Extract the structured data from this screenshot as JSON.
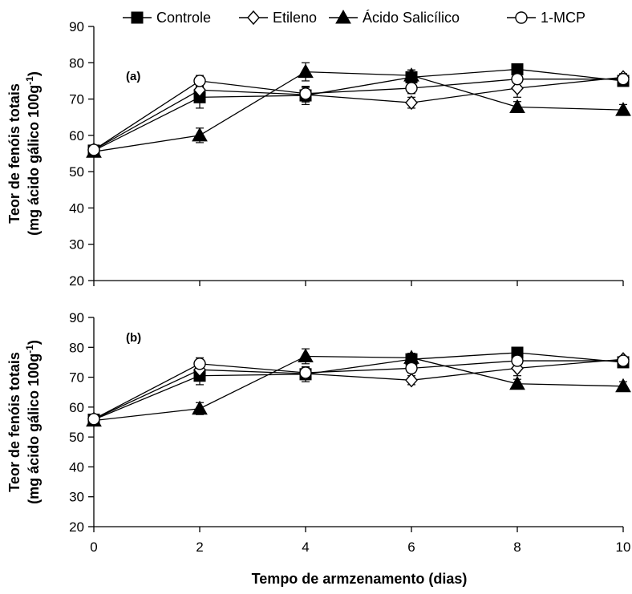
{
  "chart_data": [
    {
      "type": "line",
      "panel_label": "(a)",
      "ylabel_line1": "Teor de fenóis totais",
      "ylabel_line2": "(mg ácido gálico 100g",
      "ylabel_sup": "-1",
      "ylabel_close": ")",
      "xlabel": "",
      "ylim": [
        20,
        90
      ],
      "yticks": [
        20,
        30,
        40,
        50,
        60,
        70,
        80,
        90
      ],
      "x": [
        0,
        2,
        4,
        6,
        8,
        10
      ],
      "series": [
        {
          "name": "Controle",
          "marker": "square",
          "values": [
            55.8,
            70.5,
            71.0,
            76.0,
            78.2,
            75.0
          ],
          "errors": [
            1.0,
            3.0,
            2.5,
            2.0,
            1.0,
            1.0
          ]
        },
        {
          "name": "Etileno",
          "marker": "diamond",
          "values": [
            56.0,
            72.5,
            71.2,
            69.0,
            73.0,
            76.0
          ],
          "errors": [
            1.0,
            2.0,
            2.0,
            1.5,
            2.5,
            1.0
          ]
        },
        {
          "name": "Ácido Salicílico",
          "marker": "triangle",
          "values": [
            55.5,
            60.0,
            77.5,
            76.5,
            67.8,
            67.0
          ],
          "errors": [
            1.0,
            2.0,
            2.5,
            1.5,
            1.5,
            1.5
          ]
        },
        {
          "name": "1-MCP",
          "marker": "circle",
          "values": [
            56.0,
            75.0,
            71.5,
            73.0,
            75.5,
            75.5
          ],
          "errors": [
            1.0,
            1.5,
            2.0,
            1.5,
            2.0,
            1.0
          ]
        }
      ]
    },
    {
      "type": "line",
      "panel_label": "(b)",
      "ylabel_line1": "Teor de fenóis totais",
      "ylabel_line2": "(mg ácido gálico 100g",
      "ylabel_sup": "-1",
      "ylabel_close": ")",
      "xlabel": "Tempo de armzenamento (dias)",
      "ylim": [
        20,
        90
      ],
      "yticks": [
        20,
        30,
        40,
        50,
        60,
        70,
        80,
        90
      ],
      "xticks": [
        0,
        2,
        4,
        6,
        8,
        10
      ],
      "x": [
        0,
        2,
        4,
        6,
        8,
        10
      ],
      "series": [
        {
          "name": "Controle",
          "marker": "square",
          "values": [
            55.8,
            70.5,
            71.0,
            76.0,
            78.2,
            75.0
          ],
          "errors": [
            1.0,
            3.0,
            2.5,
            2.0,
            1.0,
            1.0
          ]
        },
        {
          "name": "Etileno",
          "marker": "diamond",
          "values": [
            56.0,
            72.5,
            71.2,
            69.0,
            73.0,
            76.0
          ],
          "errors": [
            1.0,
            2.0,
            2.0,
            1.5,
            2.5,
            1.0
          ]
        },
        {
          "name": "Ácido Salicílico",
          "marker": "triangle",
          "values": [
            55.5,
            59.5,
            77.0,
            76.5,
            67.8,
            67.0
          ],
          "errors": [
            1.0,
            2.0,
            2.5,
            1.5,
            1.5,
            1.5
          ]
        },
        {
          "name": "1-MCP",
          "marker": "circle",
          "values": [
            56.0,
            74.5,
            71.5,
            73.0,
            75.5,
            75.5
          ],
          "errors": [
            1.0,
            2.0,
            2.0,
            1.5,
            2.0,
            1.0
          ]
        }
      ]
    }
  ],
  "legend": {
    "placement": "top",
    "items": [
      {
        "label": "Controle",
        "marker": "square"
      },
      {
        "label": "Etileno",
        "marker": "diamond"
      },
      {
        "label": "Ácido Salicílico",
        "marker": "triangle"
      },
      {
        "label": "1-MCP",
        "marker": "circle"
      }
    ]
  },
  "colors": {
    "ink": "#000000",
    "background": "#ffffff",
    "open_marker_fill": "#ffffff"
  }
}
